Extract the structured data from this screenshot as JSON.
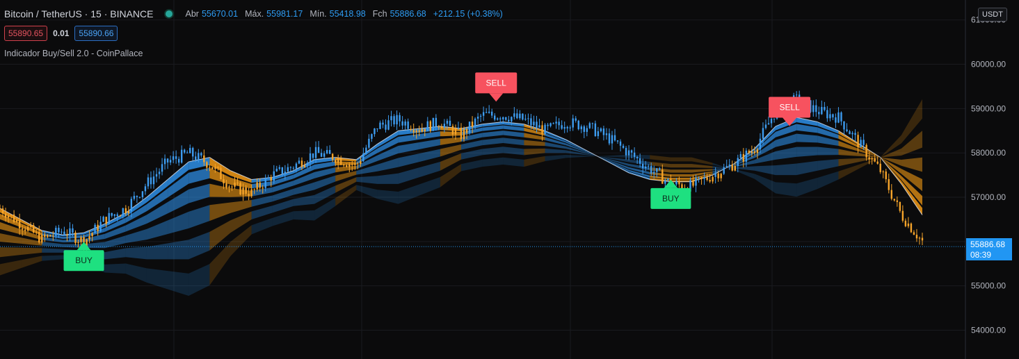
{
  "header": {
    "symbol_title": "Bitcoin / TetherUS · 15 · BINANCE",
    "open_label": "Abr",
    "open_value": "55670.01",
    "high_label": "Máx.",
    "high_value": "55981.17",
    "low_label": "Mín.",
    "low_value": "55418.98",
    "close_label": "Fch",
    "close_value": "55886.68",
    "change": "+212.15 (+0.38%)"
  },
  "trade": {
    "sell_price": "55890.65",
    "spread": "0.01",
    "buy_price": "55890.66"
  },
  "indicator_name": "Indicador Buy/Sell 2.0 - CoinPallace",
  "currency": "USDT",
  "last_price": {
    "price": "55886.68",
    "countdown": "08:39"
  },
  "colors": {
    "bull": "#2e8fe8",
    "bear": "#f39a15",
    "buy": "#1ee080",
    "sell": "#f7525f",
    "background": "#0b0b0c"
  },
  "chart_data": {
    "type": "candlestick",
    "ylim": [
      53350,
      61450
    ],
    "y_ticks": [
      "61000.00",
      "60000.00",
      "59000.00",
      "58000.00",
      "57000.00",
      "56000.00",
      "55000.00",
      "54000.00"
    ],
    "x": [
      0,
      30,
      60,
      90,
      120,
      150,
      180,
      210,
      240,
      270,
      300,
      330,
      360,
      390,
      420,
      450,
      480,
      510,
      540,
      570,
      600,
      630,
      660,
      690,
      720,
      750,
      780,
      810,
      840,
      870,
      900,
      930,
      960,
      990,
      1020,
      1050,
      1080,
      1110,
      1140,
      1170,
      1200,
      1230,
      1260,
      1290,
      1320
    ],
    "close": [
      56750,
      56400,
      56050,
      56250,
      56000,
      56500,
      56750,
      57300,
      57800,
      58000,
      57750,
      57250,
      57100,
      57500,
      57700,
      58000,
      57900,
      57700,
      58600,
      58750,
      58550,
      58700,
      58400,
      58850,
      58850,
      58750,
      58500,
      58700,
      58600,
      58350,
      58000,
      57650,
      57300,
      57250,
      57500,
      57750,
      58100,
      58950,
      59200,
      58950,
      58800,
      58200,
      57600,
      56600,
      56000
    ],
    "ribbon_fast": [
      56750,
      56500,
      56250,
      56150,
      56200,
      56400,
      56650,
      57000,
      57400,
      57800,
      57900,
      57600,
      57400,
      57450,
      57600,
      57850,
      57900,
      57850,
      58200,
      58500,
      58550,
      58600,
      58550,
      58650,
      58700,
      58650,
      58500,
      58300,
      58050,
      57800,
      57550,
      57400,
      57350,
      57350,
      57500,
      57750,
      58100,
      58600,
      58800,
      58700,
      58500,
      58200,
      57900,
      57300,
      56600
    ],
    "ribbon_slow": [
      56200,
      56100,
      56000,
      55950,
      55950,
      56000,
      56150,
      56300,
      56500,
      56700,
      56850,
      56900,
      56950,
      57050,
      57200,
      57350,
      57500,
      57600,
      57750,
      57900,
      58000,
      58100,
      58200,
      58300,
      58350,
      58300,
      58250,
      58150,
      58000,
      57850,
      57700,
      57600,
      57550,
      57550,
      57600,
      57700,
      57850,
      58050,
      58150,
      58150,
      58100,
      58000,
      57900,
      57700,
      57550
    ],
    "series_colors": {
      "up_trend": "#2e8fe8",
      "down_trend": "#f39a15"
    },
    "signals": [
      {
        "label": "BUY",
        "x": 120,
        "y": 55900,
        "side": "below"
      },
      {
        "label": "SELL",
        "x": 710,
        "y": 59250,
        "side": "above"
      },
      {
        "label": "BUY",
        "x": 960,
        "y": 57300,
        "side": "below"
      },
      {
        "label": "SELL",
        "x": 1130,
        "y": 58700,
        "side": "above"
      }
    ],
    "last_price": 55886.68
  }
}
